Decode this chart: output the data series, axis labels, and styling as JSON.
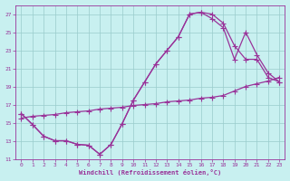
{
  "xlabel": "Windchill (Refroidissement éolien,°C)",
  "bg_color": "#c8f0f0",
  "line_color": "#993399",
  "grid_color": "#99cccc",
  "xlim": [
    -0.5,
    23.5
  ],
  "ylim": [
    11,
    28
  ],
  "xticks": [
    0,
    1,
    2,
    3,
    4,
    5,
    6,
    7,
    8,
    9,
    10,
    11,
    12,
    13,
    14,
    15,
    16,
    17,
    18,
    19,
    20,
    21,
    22,
    23
  ],
  "yticks": [
    11,
    13,
    15,
    17,
    19,
    21,
    23,
    25,
    27
  ],
  "curve1_x": [
    0,
    1,
    2,
    3,
    4,
    5,
    6,
    7,
    8,
    9,
    10,
    11,
    12,
    13,
    14,
    15,
    16,
    17,
    18,
    19,
    20,
    21,
    22,
    23
  ],
  "curve1_y": [
    16.0,
    14.8,
    13.5,
    13.0,
    13.0,
    12.6,
    12.5,
    11.5,
    12.6,
    14.9,
    17.5,
    19.5,
    21.5,
    23.0,
    24.5,
    27.0,
    27.2,
    27.0,
    26.0,
    23.5,
    22.0,
    22.0,
    20.0,
    19.5
  ],
  "curve2_x": [
    0,
    1,
    2,
    3,
    4,
    5,
    6,
    7,
    8,
    9,
    10,
    11,
    12,
    13,
    14,
    15,
    16,
    17,
    18,
    19,
    20,
    21,
    22,
    23
  ],
  "curve2_y": [
    16.0,
    14.8,
    13.5,
    13.0,
    13.0,
    12.6,
    12.5,
    11.5,
    12.6,
    14.9,
    17.5,
    19.5,
    21.5,
    23.0,
    24.5,
    27.0,
    27.2,
    26.5,
    25.5,
    22.0,
    25.0,
    22.5,
    20.5,
    19.5
  ],
  "curve3_x": [
    0,
    1,
    2,
    3,
    4,
    5,
    6,
    7,
    8,
    9,
    10,
    11,
    12,
    13,
    14,
    15,
    16,
    17,
    18,
    19,
    20,
    21,
    22,
    23
  ],
  "curve3_y": [
    15.5,
    15.7,
    15.8,
    15.9,
    16.1,
    16.2,
    16.3,
    16.5,
    16.6,
    16.7,
    16.9,
    17.0,
    17.1,
    17.3,
    17.4,
    17.5,
    17.7,
    17.8,
    18.0,
    18.5,
    19.0,
    19.3,
    19.6,
    20.0
  ],
  "markersize": 2.5,
  "linewidth": 0.9
}
